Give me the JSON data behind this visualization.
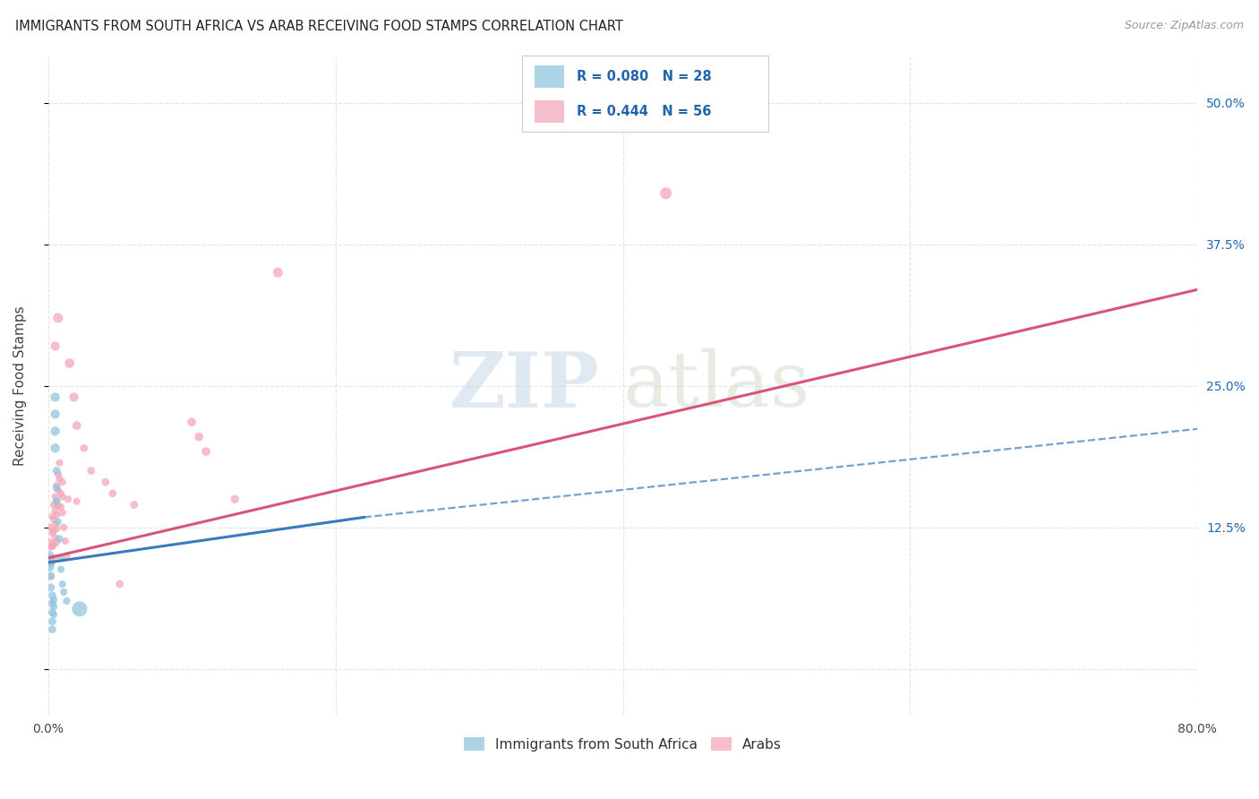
{
  "title": "IMMIGRANTS FROM SOUTH AFRICA VS ARAB RECEIVING FOOD STAMPS CORRELATION CHART",
  "source": "Source: ZipAtlas.com",
  "ylabel": "Receiving Food Stamps",
  "xlim": [
    0.0,
    0.8
  ],
  "ylim": [
    -0.04,
    0.54
  ],
  "xticks": [
    0.0,
    0.2,
    0.4,
    0.6,
    0.8
  ],
  "xticklabels": [
    "0.0%",
    "",
    "",
    "",
    "80.0%"
  ],
  "yticks_right": [
    0.0,
    0.125,
    0.25,
    0.375,
    0.5
  ],
  "yticklabels_right": [
    "",
    "12.5%",
    "25.0%",
    "37.5%",
    "50.0%"
  ],
  "watermark": "ZIPatlas",
  "legend_R_blue": "R = 0.080",
  "legend_N_blue": "N = 28",
  "legend_R_pink": "R = 0.444",
  "legend_N_pink": "N = 56",
  "blue_color": "#92c5de",
  "pink_color": "#f4a7b9",
  "blue_line_color": "#3a7abf",
  "pink_line_color": "#d9547a",
  "text_blue_color": "#2166ac",
  "background_color": "#ffffff",
  "grid_color": "#d8d8d8",
  "blue_line": [
    0.0,
    0.094,
    0.22,
    0.134
  ],
  "blue_dash_line": [
    0.22,
    0.134,
    0.8,
    0.212
  ],
  "pink_line": [
    0.0,
    0.098,
    0.8,
    0.335
  ],
  "blue_scatter": [
    [
      0.001,
      0.1
    ],
    [
      0.001,
      0.09
    ],
    [
      0.002,
      0.093
    ],
    [
      0.002,
      0.082
    ],
    [
      0.002,
      0.072
    ],
    [
      0.003,
      0.065
    ],
    [
      0.003,
      0.058
    ],
    [
      0.003,
      0.05
    ],
    [
      0.003,
      0.042
    ],
    [
      0.003,
      0.035
    ],
    [
      0.004,
      0.061
    ],
    [
      0.004,
      0.055
    ],
    [
      0.004,
      0.048
    ],
    [
      0.005,
      0.24
    ],
    [
      0.005,
      0.225
    ],
    [
      0.005,
      0.21
    ],
    [
      0.005,
      0.195
    ],
    [
      0.006,
      0.175
    ],
    [
      0.006,
      0.16
    ],
    [
      0.006,
      0.148
    ],
    [
      0.007,
      0.13
    ],
    [
      0.008,
      0.115
    ],
    [
      0.009,
      0.098
    ],
    [
      0.009,
      0.088
    ],
    [
      0.01,
      0.075
    ],
    [
      0.011,
      0.068
    ],
    [
      0.013,
      0.06
    ],
    [
      0.022,
      0.053
    ]
  ],
  "pink_scatter": [
    [
      0.001,
      0.125
    ],
    [
      0.001,
      0.112
    ],
    [
      0.001,
      0.098
    ],
    [
      0.002,
      0.108
    ],
    [
      0.002,
      0.095
    ],
    [
      0.002,
      0.082
    ],
    [
      0.003,
      0.135
    ],
    [
      0.003,
      0.12
    ],
    [
      0.003,
      0.108
    ],
    [
      0.003,
      0.095
    ],
    [
      0.004,
      0.145
    ],
    [
      0.004,
      0.132
    ],
    [
      0.004,
      0.122
    ],
    [
      0.004,
      0.11
    ],
    [
      0.004,
      0.098
    ],
    [
      0.005,
      0.152
    ],
    [
      0.005,
      0.14
    ],
    [
      0.005,
      0.128
    ],
    [
      0.005,
      0.116
    ],
    [
      0.005,
      0.285
    ],
    [
      0.006,
      0.162
    ],
    [
      0.006,
      0.148
    ],
    [
      0.006,
      0.136
    ],
    [
      0.006,
      0.124
    ],
    [
      0.006,
      0.112
    ],
    [
      0.007,
      0.172
    ],
    [
      0.007,
      0.158
    ],
    [
      0.007,
      0.144
    ],
    [
      0.007,
      0.31
    ],
    [
      0.008,
      0.182
    ],
    [
      0.008,
      0.168
    ],
    [
      0.009,
      0.155
    ],
    [
      0.009,
      0.143
    ],
    [
      0.01,
      0.165
    ],
    [
      0.01,
      0.152
    ],
    [
      0.01,
      0.138
    ],
    [
      0.011,
      0.125
    ],
    [
      0.012,
      0.113
    ],
    [
      0.013,
      0.1
    ],
    [
      0.014,
      0.15
    ],
    [
      0.015,
      0.27
    ],
    [
      0.018,
      0.24
    ],
    [
      0.02,
      0.215
    ],
    [
      0.02,
      0.148
    ],
    [
      0.025,
      0.195
    ],
    [
      0.03,
      0.175
    ],
    [
      0.04,
      0.165
    ],
    [
      0.045,
      0.155
    ],
    [
      0.05,
      0.075
    ],
    [
      0.06,
      0.145
    ],
    [
      0.1,
      0.218
    ],
    [
      0.105,
      0.205
    ],
    [
      0.11,
      0.192
    ],
    [
      0.13,
      0.15
    ],
    [
      0.16,
      0.35
    ],
    [
      0.43,
      0.42
    ]
  ],
  "blue_sizes": [
    60,
    60,
    40,
    40,
    40,
    40,
    40,
    40,
    40,
    40,
    35,
    35,
    35,
    55,
    55,
    55,
    55,
    40,
    40,
    40,
    35,
    35,
    35,
    35,
    35,
    35,
    35,
    150
  ],
  "pink_sizes": [
    35,
    35,
    35,
    35,
    35,
    35,
    35,
    35,
    35,
    35,
    35,
    35,
    35,
    35,
    35,
    35,
    35,
    35,
    35,
    55,
    35,
    35,
    35,
    35,
    35,
    35,
    35,
    35,
    65,
    35,
    35,
    35,
    35,
    35,
    35,
    35,
    35,
    35,
    35,
    35,
    60,
    55,
    50,
    35,
    40,
    40,
    40,
    40,
    40,
    40,
    50,
    50,
    50,
    45,
    65,
    90
  ]
}
